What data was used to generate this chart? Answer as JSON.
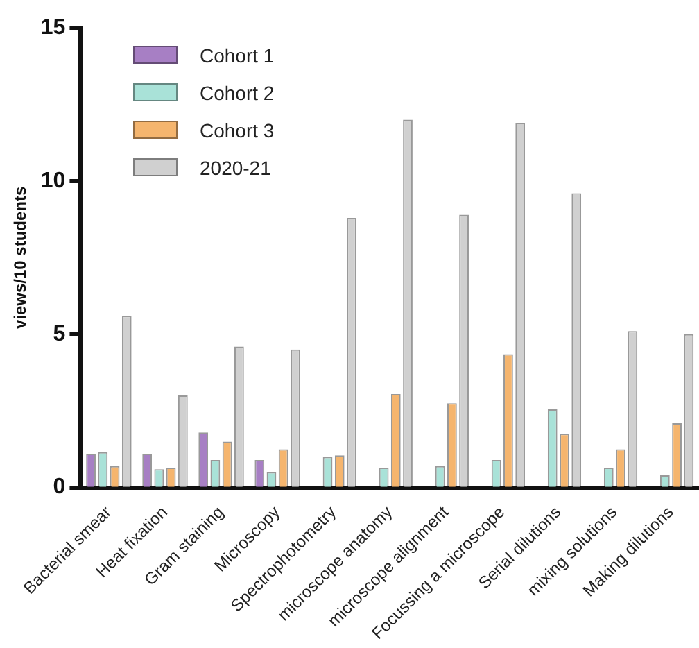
{
  "chart_data": {
    "type": "bar",
    "ylabel": "views/10 students",
    "categories": [
      "Bacterial smear",
      "Heat fixation",
      "Gram staining",
      "Microscopy",
      "Spectrophotometry",
      "microscope anatomy",
      "microscope alignment",
      "Focussing a microscope",
      "Serial dilutions",
      "mixing solutions",
      "Making dilutions"
    ],
    "series": [
      {
        "name": "Cohort 1",
        "color": "#a77fc4",
        "values": [
          1.1,
          1.1,
          1.8,
          0.9,
          null,
          null,
          null,
          null,
          null,
          null,
          null
        ]
      },
      {
        "name": "Cohort 2",
        "color": "#a9e2d8",
        "values": [
          1.15,
          0.6,
          0.9,
          0.5,
          1.0,
          0.65,
          0.7,
          0.9,
          2.55,
          0.65,
          0.4
        ]
      },
      {
        "name": "Cohort 3",
        "color": "#f5b56e",
        "values": [
          0.7,
          0.65,
          1.5,
          1.25,
          1.05,
          3.05,
          2.75,
          4.35,
          1.75,
          1.25,
          2.1
        ]
      },
      {
        "name": "2020-21",
        "color": "#d0d0d0",
        "values": [
          5.6,
          3.0,
          4.6,
          4.5,
          8.8,
          12.0,
          8.9,
          11.9,
          9.6,
          5.1,
          5.0
        ]
      }
    ],
    "ylim": [
      0,
      15
    ],
    "yticks": [
      0,
      5,
      10,
      15
    ],
    "grid": false,
    "legend": "top left"
  }
}
